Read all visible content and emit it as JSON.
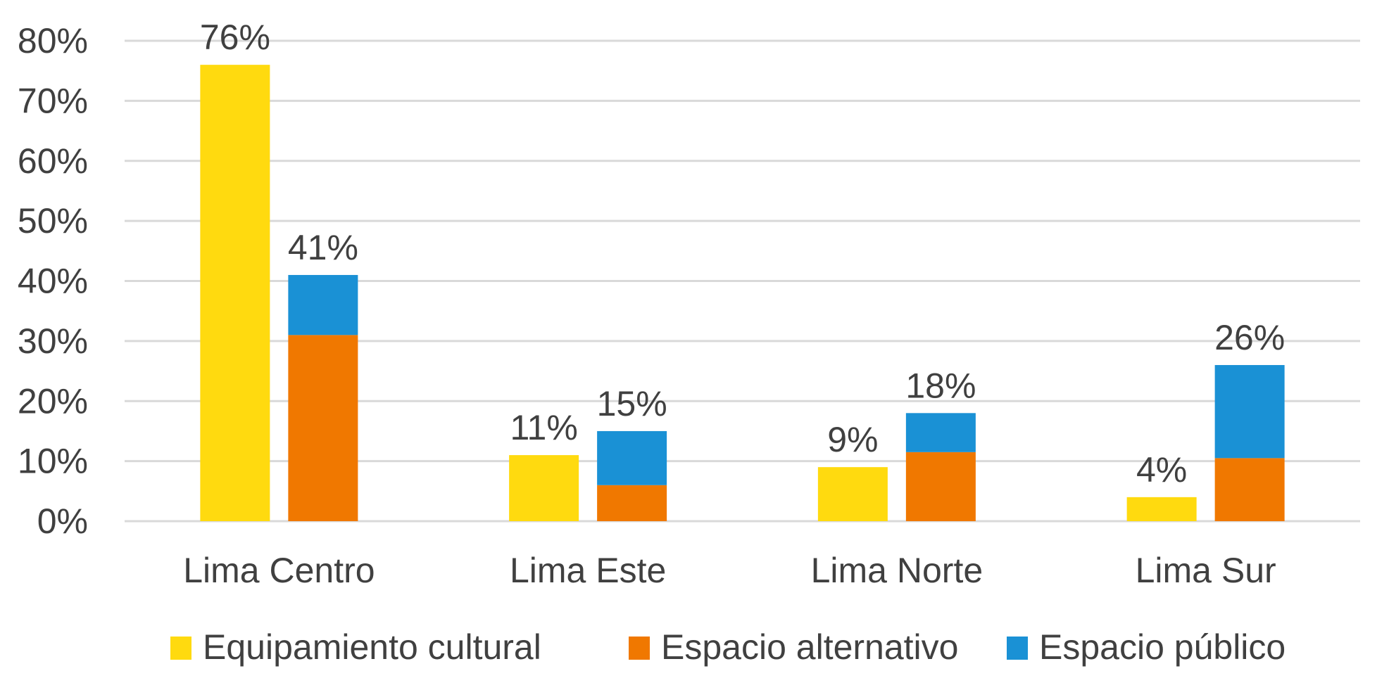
{
  "chart_data": {
    "type": "bar",
    "stacked_second_bar": true,
    "categories": [
      "Lima Centro",
      "Lima Este",
      "Lima Norte",
      "Lima Sur"
    ],
    "series": [
      {
        "name": "Equipamiento cultural",
        "color": "#FFDA0F",
        "values": [
          76,
          11,
          9,
          4
        ],
        "stack": "a"
      },
      {
        "name": "Espacio alternativo",
        "color": "#F07800",
        "values": [
          31,
          6,
          11.5,
          10.5
        ],
        "stack": "b"
      },
      {
        "name": "Espacio público",
        "color": "#1A91D5",
        "values": [
          10,
          9,
          6.5,
          15.5
        ],
        "stack": "b"
      }
    ],
    "data_labels": {
      "a": [
        "76%",
        "11%",
        "9%",
        "4%"
      ],
      "b": [
        "41%",
        "15%",
        "18%",
        "26%"
      ]
    },
    "yticks": [
      "0%",
      "10%",
      "20%",
      "30%",
      "40%",
      "50%",
      "60%",
      "70%",
      "80%"
    ],
    "ylim": [
      0,
      80
    ],
    "grid": true,
    "legend_position": "bottom",
    "title": "",
    "xlabel": "",
    "ylabel": ""
  }
}
